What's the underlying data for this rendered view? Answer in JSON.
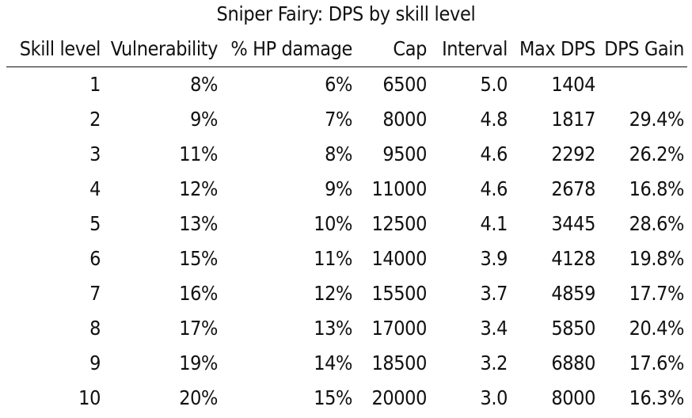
{
  "chart_data": {
    "type": "table",
    "title": "Sniper Fairy: DPS by skill level",
    "columns": [
      "Skill level",
      "Vulnerability",
      "% HP damage",
      "Cap",
      "Interval",
      "Max DPS",
      "DPS Gain"
    ],
    "rows": [
      [
        "1",
        "8%",
        "6%",
        "6500",
        "5.0",
        "1404",
        ""
      ],
      [
        "2",
        "9%",
        "7%",
        "8000",
        "4.8",
        "1817",
        "29.4%"
      ],
      [
        "3",
        "11%",
        "8%",
        "9500",
        "4.6",
        "2292",
        "26.2%"
      ],
      [
        "4",
        "12%",
        "9%",
        "11000",
        "4.6",
        "2678",
        "16.8%"
      ],
      [
        "5",
        "13%",
        "10%",
        "12500",
        "4.1",
        "3445",
        "28.6%"
      ],
      [
        "6",
        "15%",
        "11%",
        "14000",
        "3.9",
        "4128",
        "19.8%"
      ],
      [
        "7",
        "16%",
        "12%",
        "15500",
        "3.7",
        "4859",
        "17.7%"
      ],
      [
        "8",
        "17%",
        "13%",
        "17000",
        "3.4",
        "5850",
        "20.4%"
      ],
      [
        "9",
        "19%",
        "14%",
        "18500",
        "3.2",
        "6880",
        "17.6%"
      ],
      [
        "10",
        "20%",
        "15%",
        "20000",
        "3.0",
        "8000",
        "16.3%"
      ]
    ]
  }
}
